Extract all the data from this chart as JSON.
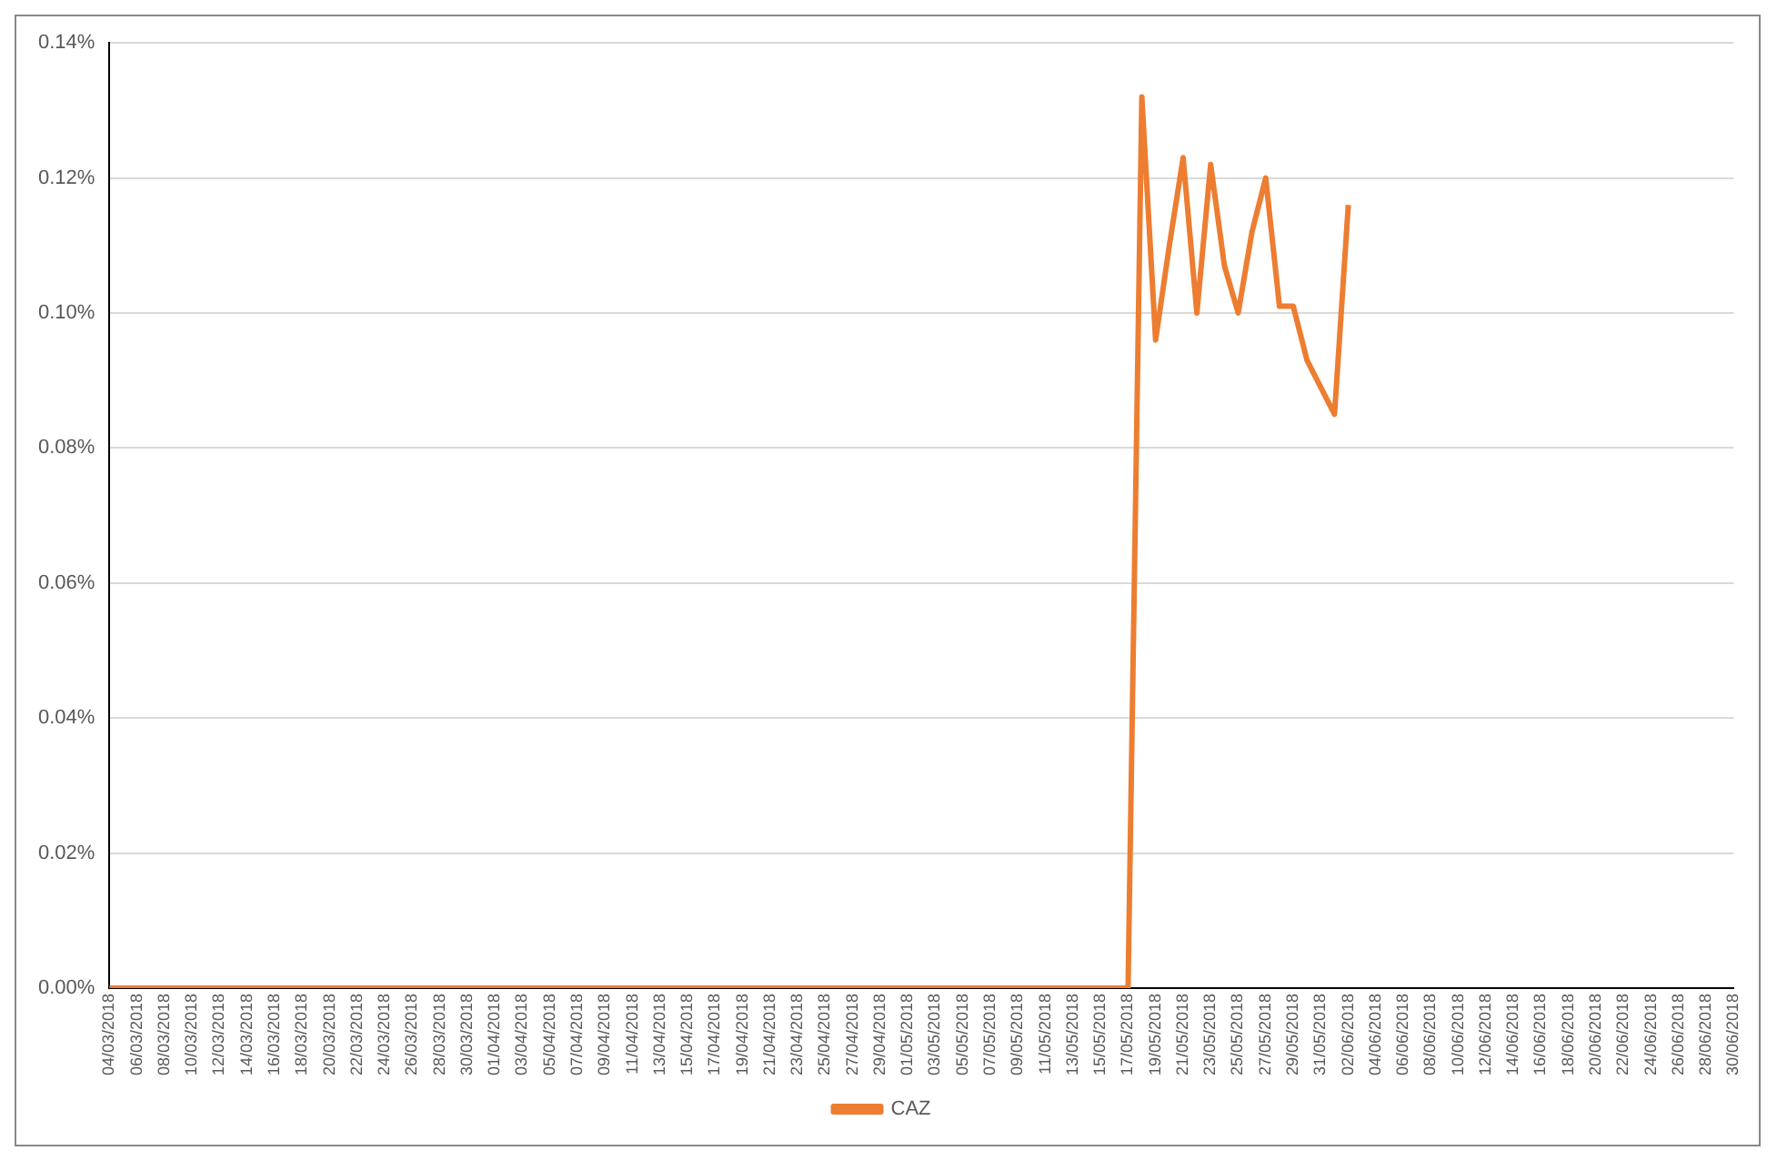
{
  "chart_data": {
    "type": "line",
    "categories": [
      "04/03/2018",
      null,
      "06/03/2018",
      null,
      "08/03/2018",
      null,
      "10/03/2018",
      null,
      "12/03/2018",
      null,
      "14/03/2018",
      null,
      "16/03/2018",
      null,
      "18/03/2018",
      null,
      "20/03/2018",
      null,
      "22/03/2018",
      null,
      "24/03/2018",
      null,
      "26/03/2018",
      null,
      "28/03/2018",
      null,
      "30/03/2018",
      null,
      "01/04/2018",
      null,
      "03/04/2018",
      null,
      "05/04/2018",
      null,
      "07/04/2018",
      null,
      "09/04/2018",
      null,
      "11/04/2018",
      null,
      "13/04/2018",
      null,
      "15/04/2018",
      null,
      "17/04/2018",
      null,
      "19/04/2018",
      null,
      "21/04/2018",
      null,
      "23/04/2018",
      null,
      "25/04/2018",
      null,
      "27/04/2018",
      null,
      "29/04/2018",
      null,
      "01/05/2018",
      null,
      "03/05/2018",
      null,
      "05/05/2018",
      null,
      "07/05/2018",
      null,
      "09/05/2018",
      null,
      "11/05/2018",
      null,
      "13/05/2018",
      null,
      "15/05/2018",
      null,
      "17/05/2018",
      null,
      "19/05/2018",
      null,
      "21/05/2018",
      null,
      "23/05/2018",
      null,
      "25/05/2018",
      null,
      "27/05/2018",
      null,
      "29/05/2018",
      null,
      "31/05/2018",
      null,
      "02/06/2018",
      null,
      "04/06/2018",
      null,
      "06/06/2018",
      null,
      "08/06/2018",
      null,
      "10/06/2018",
      null,
      "12/06/2018",
      null,
      "14/06/2018",
      null,
      "16/06/2018",
      null,
      "18/06/2018",
      null,
      "20/06/2018",
      null,
      "22/06/2018",
      null,
      "24/06/2018",
      null,
      "26/06/2018",
      null,
      "28/06/2018",
      null,
      "30/06/2018"
    ],
    "series": [
      {
        "name": "CAZ",
        "color": "#ed7d31",
        "values": [
          0,
          0,
          0,
          0,
          0,
          0,
          0,
          0,
          0,
          0,
          0,
          0,
          0,
          0,
          0,
          0,
          0,
          0,
          0,
          0,
          0,
          0,
          0,
          0,
          0,
          0,
          0,
          0,
          0,
          0,
          0,
          0,
          0,
          0,
          0,
          0,
          0,
          0,
          0,
          0,
          0,
          0,
          0,
          0,
          0,
          0,
          0,
          0,
          0,
          0,
          0,
          0,
          0,
          0,
          0,
          0,
          0,
          0,
          0,
          0,
          0,
          0,
          0,
          0,
          0,
          0,
          0,
          0,
          0,
          0,
          0,
          0,
          0,
          0,
          0,
          0.132,
          0.096,
          0.11,
          0.123,
          0.1,
          0.122,
          0.107,
          0.1,
          0.112,
          0.12,
          0.101,
          0.101,
          0.093,
          0.089,
          0.085,
          0.116,
          null,
          null,
          null,
          null,
          null,
          null,
          null,
          null,
          null,
          null,
          null,
          null,
          null,
          null,
          null,
          null,
          null,
          null,
          null,
          null,
          null,
          null,
          null,
          null,
          null,
          null,
          null,
          null
        ]
      }
    ],
    "ylim": [
      0,
      0.14
    ],
    "yticks": [
      {
        "value": 0,
        "label": "0.00%"
      },
      {
        "value": 0.02,
        "label": "0.02%"
      },
      {
        "value": 0.04,
        "label": "0.04%"
      },
      {
        "value": 0.06,
        "label": "0.06%"
      },
      {
        "value": 0.08,
        "label": "0.08%"
      },
      {
        "value": 0.1,
        "label": "0.10%"
      },
      {
        "value": 0.12,
        "label": "0.12%"
      },
      {
        "value": 0.14,
        "label": "0.14%"
      }
    ],
    "grid": "y",
    "legend": "bottom",
    "marker": "none",
    "line_style": "solid"
  }
}
